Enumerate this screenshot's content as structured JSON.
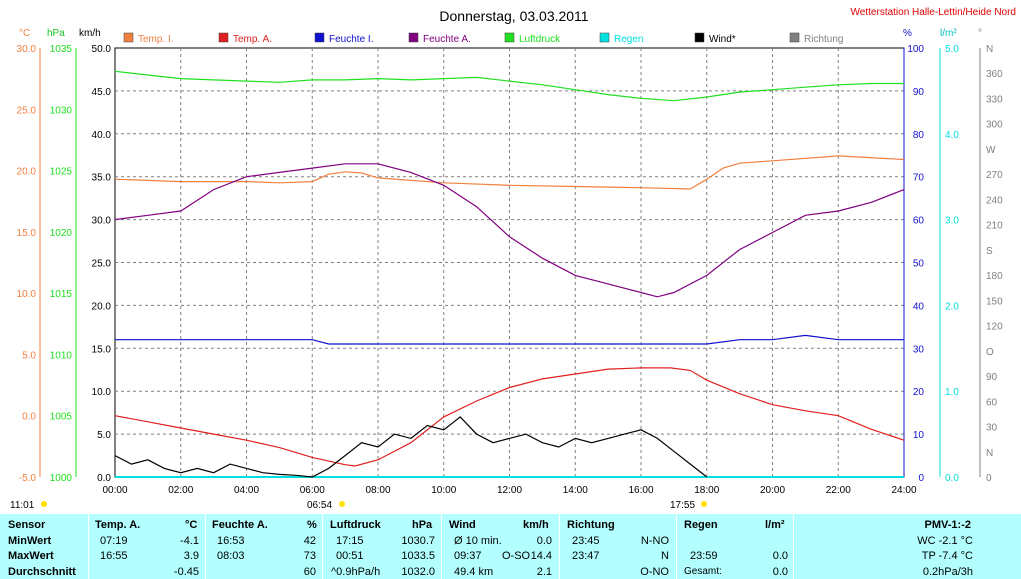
{
  "title": "Donnerstag, 03.03.2011",
  "station": "Wetterstation Halle-Lettin/Heide Nord",
  "colors": {
    "temp_i": "#f08040",
    "temp_a": "#e02020",
    "feuchte_i": "#1010d0",
    "feuchte_a": "#800080",
    "luftdruck": "#20e020",
    "regen": "#00e0e0",
    "wind": "#000000",
    "richtung": "#808080",
    "table_bg": "#b3ffff"
  },
  "axis_units": {
    "temp": "°C",
    "pressure": "hPa",
    "wind": "km/h",
    "humidity": "%",
    "rain": "l/m²",
    "direction": "°"
  },
  "sun": {
    "rise": "06:54",
    "set": "17:55",
    "moonrise": "11:01"
  },
  "chart_data": {
    "type": "line",
    "title": "Donnerstag, 03.03.2011",
    "legend_position": "top",
    "grid": true,
    "x_ticks": [
      "00:00",
      "02:00",
      "04:00",
      "06:00",
      "08:00",
      "10:00",
      "12:00",
      "14:00",
      "16:00",
      "18:00",
      "20:00",
      "22:00",
      "24:00"
    ],
    "xlim": [
      0,
      24
    ],
    "axes": {
      "temp": {
        "ticks": [
          "-5.0",
          "0.0",
          "5.0",
          "10.0",
          "15.0",
          "20.0",
          "25.0",
          "30.0"
        ],
        "ylim": [
          -5,
          30
        ]
      },
      "pressure": {
        "ticks": [
          "1000",
          "1005",
          "1010",
          "1015",
          "1020",
          "1025",
          "1030",
          "1035"
        ],
        "ylim": [
          1000,
          1035
        ]
      },
      "wind": {
        "ticks": [
          "0.0",
          "5.0",
          "10.0",
          "15.0",
          "20.0",
          "25.0",
          "30.0",
          "35.0",
          "40.0",
          "45.0",
          "50.0"
        ],
        "ylim": [
          0,
          50
        ]
      },
      "humidity": {
        "ticks": [
          "0",
          "10",
          "20",
          "30",
          "40",
          "50",
          "60",
          "70",
          "80",
          "90",
          "100"
        ],
        "ylim": [
          0,
          100
        ]
      },
      "rain": {
        "ticks": [
          "0.0",
          "1.0",
          "2.0",
          "3.0",
          "4.0",
          "5.0"
        ],
        "ylim": [
          0,
          5
        ]
      },
      "direction": {
        "ticks": [
          "0",
          "N",
          "30",
          "60",
          "90",
          "O",
          "120",
          "150",
          "180",
          "S",
          "210",
          "240",
          "270",
          "W",
          "300",
          "330",
          "360",
          "N"
        ],
        "ylim": [
          0,
          360
        ]
      }
    },
    "series": [
      {
        "name": "Temp. I.",
        "axis": "temp",
        "color": "#f08040",
        "x": [
          0,
          2,
          4,
          5,
          6,
          6.5,
          7,
          7.5,
          8,
          10,
          12,
          14,
          16,
          17.5,
          18,
          18.5,
          19,
          20,
          22,
          24
        ],
        "y": [
          19.3,
          19.1,
          19.1,
          19.0,
          19.1,
          19.7,
          19.9,
          19.8,
          19.4,
          19.0,
          18.8,
          18.7,
          18.6,
          18.5,
          19.3,
          20.2,
          20.6,
          20.8,
          21.2,
          20.9
        ]
      },
      {
        "name": "Temp. A.",
        "axis": "temp",
        "color": "#e02020",
        "x": [
          0,
          1,
          2,
          3,
          4,
          5,
          6,
          7,
          7.3,
          8,
          9,
          10,
          11,
          12,
          13,
          14,
          15,
          16,
          16.9,
          17.5,
          18,
          19,
          20,
          21,
          22,
          23,
          24
        ],
        "y": [
          0.0,
          -0.5,
          -1.0,
          -1.5,
          -2.0,
          -2.6,
          -3.4,
          -4.0,
          -4.1,
          -3.6,
          -2.2,
          -0.1,
          1.2,
          2.3,
          3.0,
          3.4,
          3.8,
          3.9,
          3.9,
          3.7,
          2.9,
          1.8,
          0.9,
          0.4,
          0.0,
          -1.1,
          -2.0
        ]
      },
      {
        "name": "Feuchte I.",
        "axis": "humidity",
        "color": "#1010d0",
        "x": [
          0,
          6,
          6.5,
          10,
          14,
          16,
          17,
          18,
          19,
          20,
          21,
          22,
          24
        ],
        "y": [
          32,
          32,
          31,
          31,
          31,
          31,
          31,
          31,
          32,
          32,
          33,
          32,
          32
        ]
      },
      {
        "name": "Feuchte A.",
        "axis": "humidity",
        "color": "#800080",
        "x": [
          0,
          1,
          2,
          3,
          4,
          5,
          6,
          7,
          8,
          9,
          10,
          11,
          12,
          13,
          14,
          15,
          16,
          16.5,
          17,
          18,
          19,
          20,
          21,
          22,
          23,
          24
        ],
        "y": [
          60,
          61,
          62,
          67,
          70,
          71,
          72,
          73,
          73,
          71,
          68,
          63,
          56,
          51,
          47,
          45,
          43,
          42,
          43,
          47,
          53,
          57,
          61,
          62,
          64,
          67
        ]
      },
      {
        "name": "Luftdruck",
        "axis": "pressure",
        "color": "#20e020",
        "x": [
          0,
          1,
          2,
          3,
          4,
          5,
          6,
          7,
          8,
          9,
          10,
          11,
          12,
          13,
          14,
          15,
          16,
          17,
          18,
          19,
          20,
          21,
          22,
          23,
          24
        ],
        "y": [
          1033.1,
          1032.8,
          1032.5,
          1032.4,
          1032.3,
          1032.2,
          1032.4,
          1032.4,
          1032.5,
          1032.4,
          1032.5,
          1032.6,
          1032.3,
          1032.0,
          1031.6,
          1031.2,
          1030.9,
          1030.7,
          1031.0,
          1031.4,
          1031.6,
          1031.8,
          1032.0,
          1032.1,
          1032.1
        ]
      },
      {
        "name": "Regen",
        "axis": "rain",
        "color": "#00e0e0",
        "x": [
          0,
          24
        ],
        "y": [
          0,
          0
        ]
      },
      {
        "name": "Wind*",
        "axis": "wind",
        "color": "#000000",
        "x": [
          0,
          0.5,
          1,
          1.5,
          2,
          2.5,
          3,
          3.5,
          4,
          4.5,
          5,
          5.5,
          6,
          6.5,
          7,
          7.5,
          8,
          8.5,
          9,
          9.5,
          10,
          10.5,
          11,
          11.5,
          12,
          12.5,
          13,
          13.5,
          14,
          14.5,
          15,
          15.5,
          16,
          16.5,
          17,
          17.5,
          18
        ],
        "y": [
          2.5,
          1.5,
          2.0,
          1.0,
          0.5,
          1.0,
          0.5,
          1.5,
          1.0,
          0.5,
          0.3,
          0.2,
          0.0,
          1.0,
          2.5,
          4.0,
          3.5,
          5.0,
          4.5,
          6.0,
          5.5,
          7.0,
          5.0,
          4.0,
          4.5,
          5.0,
          4.0,
          3.5,
          4.5,
          4.0,
          4.5,
          5.0,
          5.5,
          4.5,
          3.0,
          1.5,
          0.0
        ]
      },
      {
        "name": "Richtung",
        "axis": "direction",
        "color": "#808080",
        "x": [],
        "y": []
      }
    ]
  },
  "table": {
    "row_labels": {
      "sensor": "Sensor",
      "min": "MinWert",
      "max": "MaxWert",
      "avg": "Durchschnitt"
    },
    "temp": {
      "header": "Temp. A.",
      "unit": "°C",
      "min_time": "07:19",
      "min": "-4.1",
      "max_time": "16:55",
      "max": "3.9",
      "avg": "-0.45"
    },
    "feuchte": {
      "header": "Feuchte A.",
      "unit": "%",
      "min_time": "16:53",
      "min": "42",
      "max_time": "08:03",
      "max": "73",
      "avg": "60"
    },
    "druck": {
      "header": "Luftdruck",
      "unit": "hPa",
      "min_time": "17:15",
      "min": "1030.7",
      "max_time": "00:51",
      "max": "1033.5",
      "avg_label": "^0.9hPa/h",
      "avg": "1032.0"
    },
    "wind": {
      "header": "Wind",
      "unit": "km/h",
      "min_label": "Ø 10 min.",
      "min": "0.0",
      "max_time": "09:37",
      "max_dir": "O-SO",
      "max": "14.4",
      "avg_dist": "49.4 km",
      "avg": "2.1"
    },
    "richtung": {
      "header": "Richtung",
      "min_time": "23:45",
      "min": "N-NO",
      "max_time": "23:47",
      "max": "N",
      "avg": "O-NO"
    },
    "regen": {
      "header": "Regen",
      "unit": "l/m²",
      "max_time": "23:59",
      "max": "0.0",
      "avg_label": "Gesamt:",
      "avg": "0.0"
    },
    "pmv": {
      "header": "PMV-1:-2",
      "wc": "WC -2.1 °C",
      "tp": "TP -7.4 °C",
      "trend": "0.2hPa/3h"
    }
  }
}
